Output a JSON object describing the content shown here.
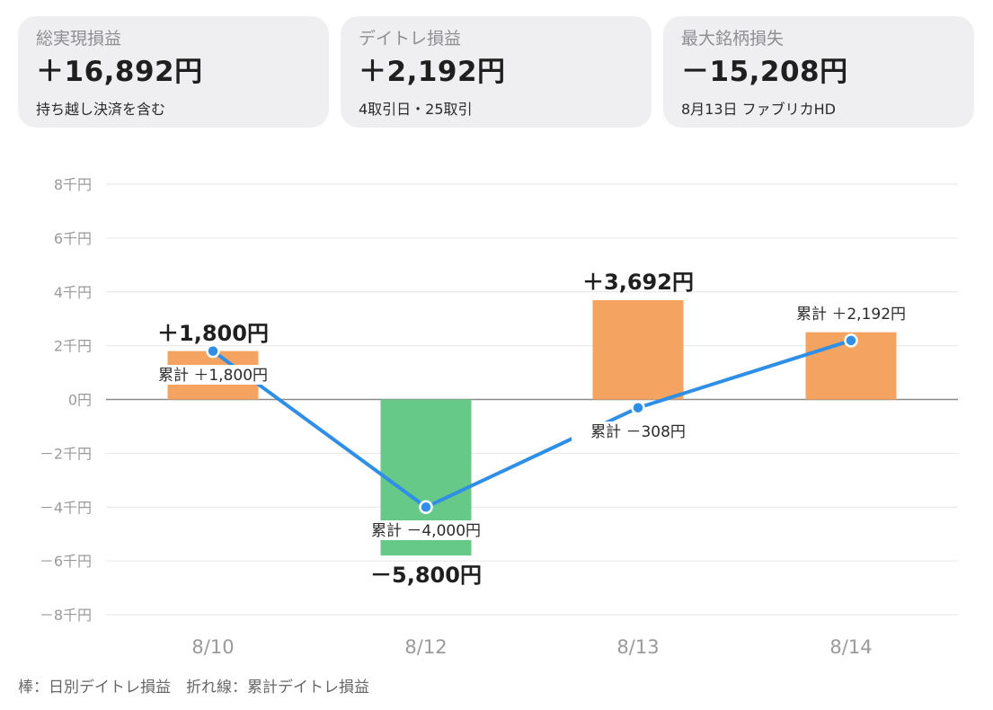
{
  "cards": [
    {
      "label": "総実現損益",
      "value": "＋16,892円",
      "sub": "持ち越し決済を含む"
    },
    {
      "label": "デイトレ損益",
      "value": "＋2,192円",
      "sub": "4取引日・25取引"
    },
    {
      "label": "最大銘柄損失",
      "value": "－15,208円",
      "sub": "8月13日 ファブリカHD"
    }
  ],
  "caption": "棒：日別デイトレ損益　折れ線：累計デイトレ損益",
  "chart_data": {
    "type": "bar",
    "categories": [
      "8/10",
      "8/12",
      "8/13",
      "8/14"
    ],
    "series": [
      {
        "values": [
          1800,
          -5800,
          3692,
          2500
        ],
        "value_labels": [
          "＋1,800円",
          "－5,800円",
          "＋3,692円",
          ""
        ]
      },
      {
        "type": "line",
        "values": [
          1800,
          -4000,
          -308,
          2192
        ],
        "point_labels": [
          "累計 ＋1,800円",
          "累計 －4,000円",
          "累計 －308円",
          "累計 ＋2,192円"
        ]
      }
    ],
    "ylim": [
      -8000,
      8000
    ],
    "yticks": [
      8000,
      6000,
      4000,
      2000,
      0,
      -2000,
      -4000,
      -6000,
      -8000
    ],
    "ytick_labels": [
      "8千円",
      "6千円",
      "4千円",
      "2千円",
      "0円",
      "－2千円",
      "－4千円",
      "－6千円",
      "－8千円"
    ],
    "grid": true,
    "colors": {
      "positive": "#f4a460",
      "negative": "#66c987",
      "line": "#2f8fe6"
    }
  }
}
